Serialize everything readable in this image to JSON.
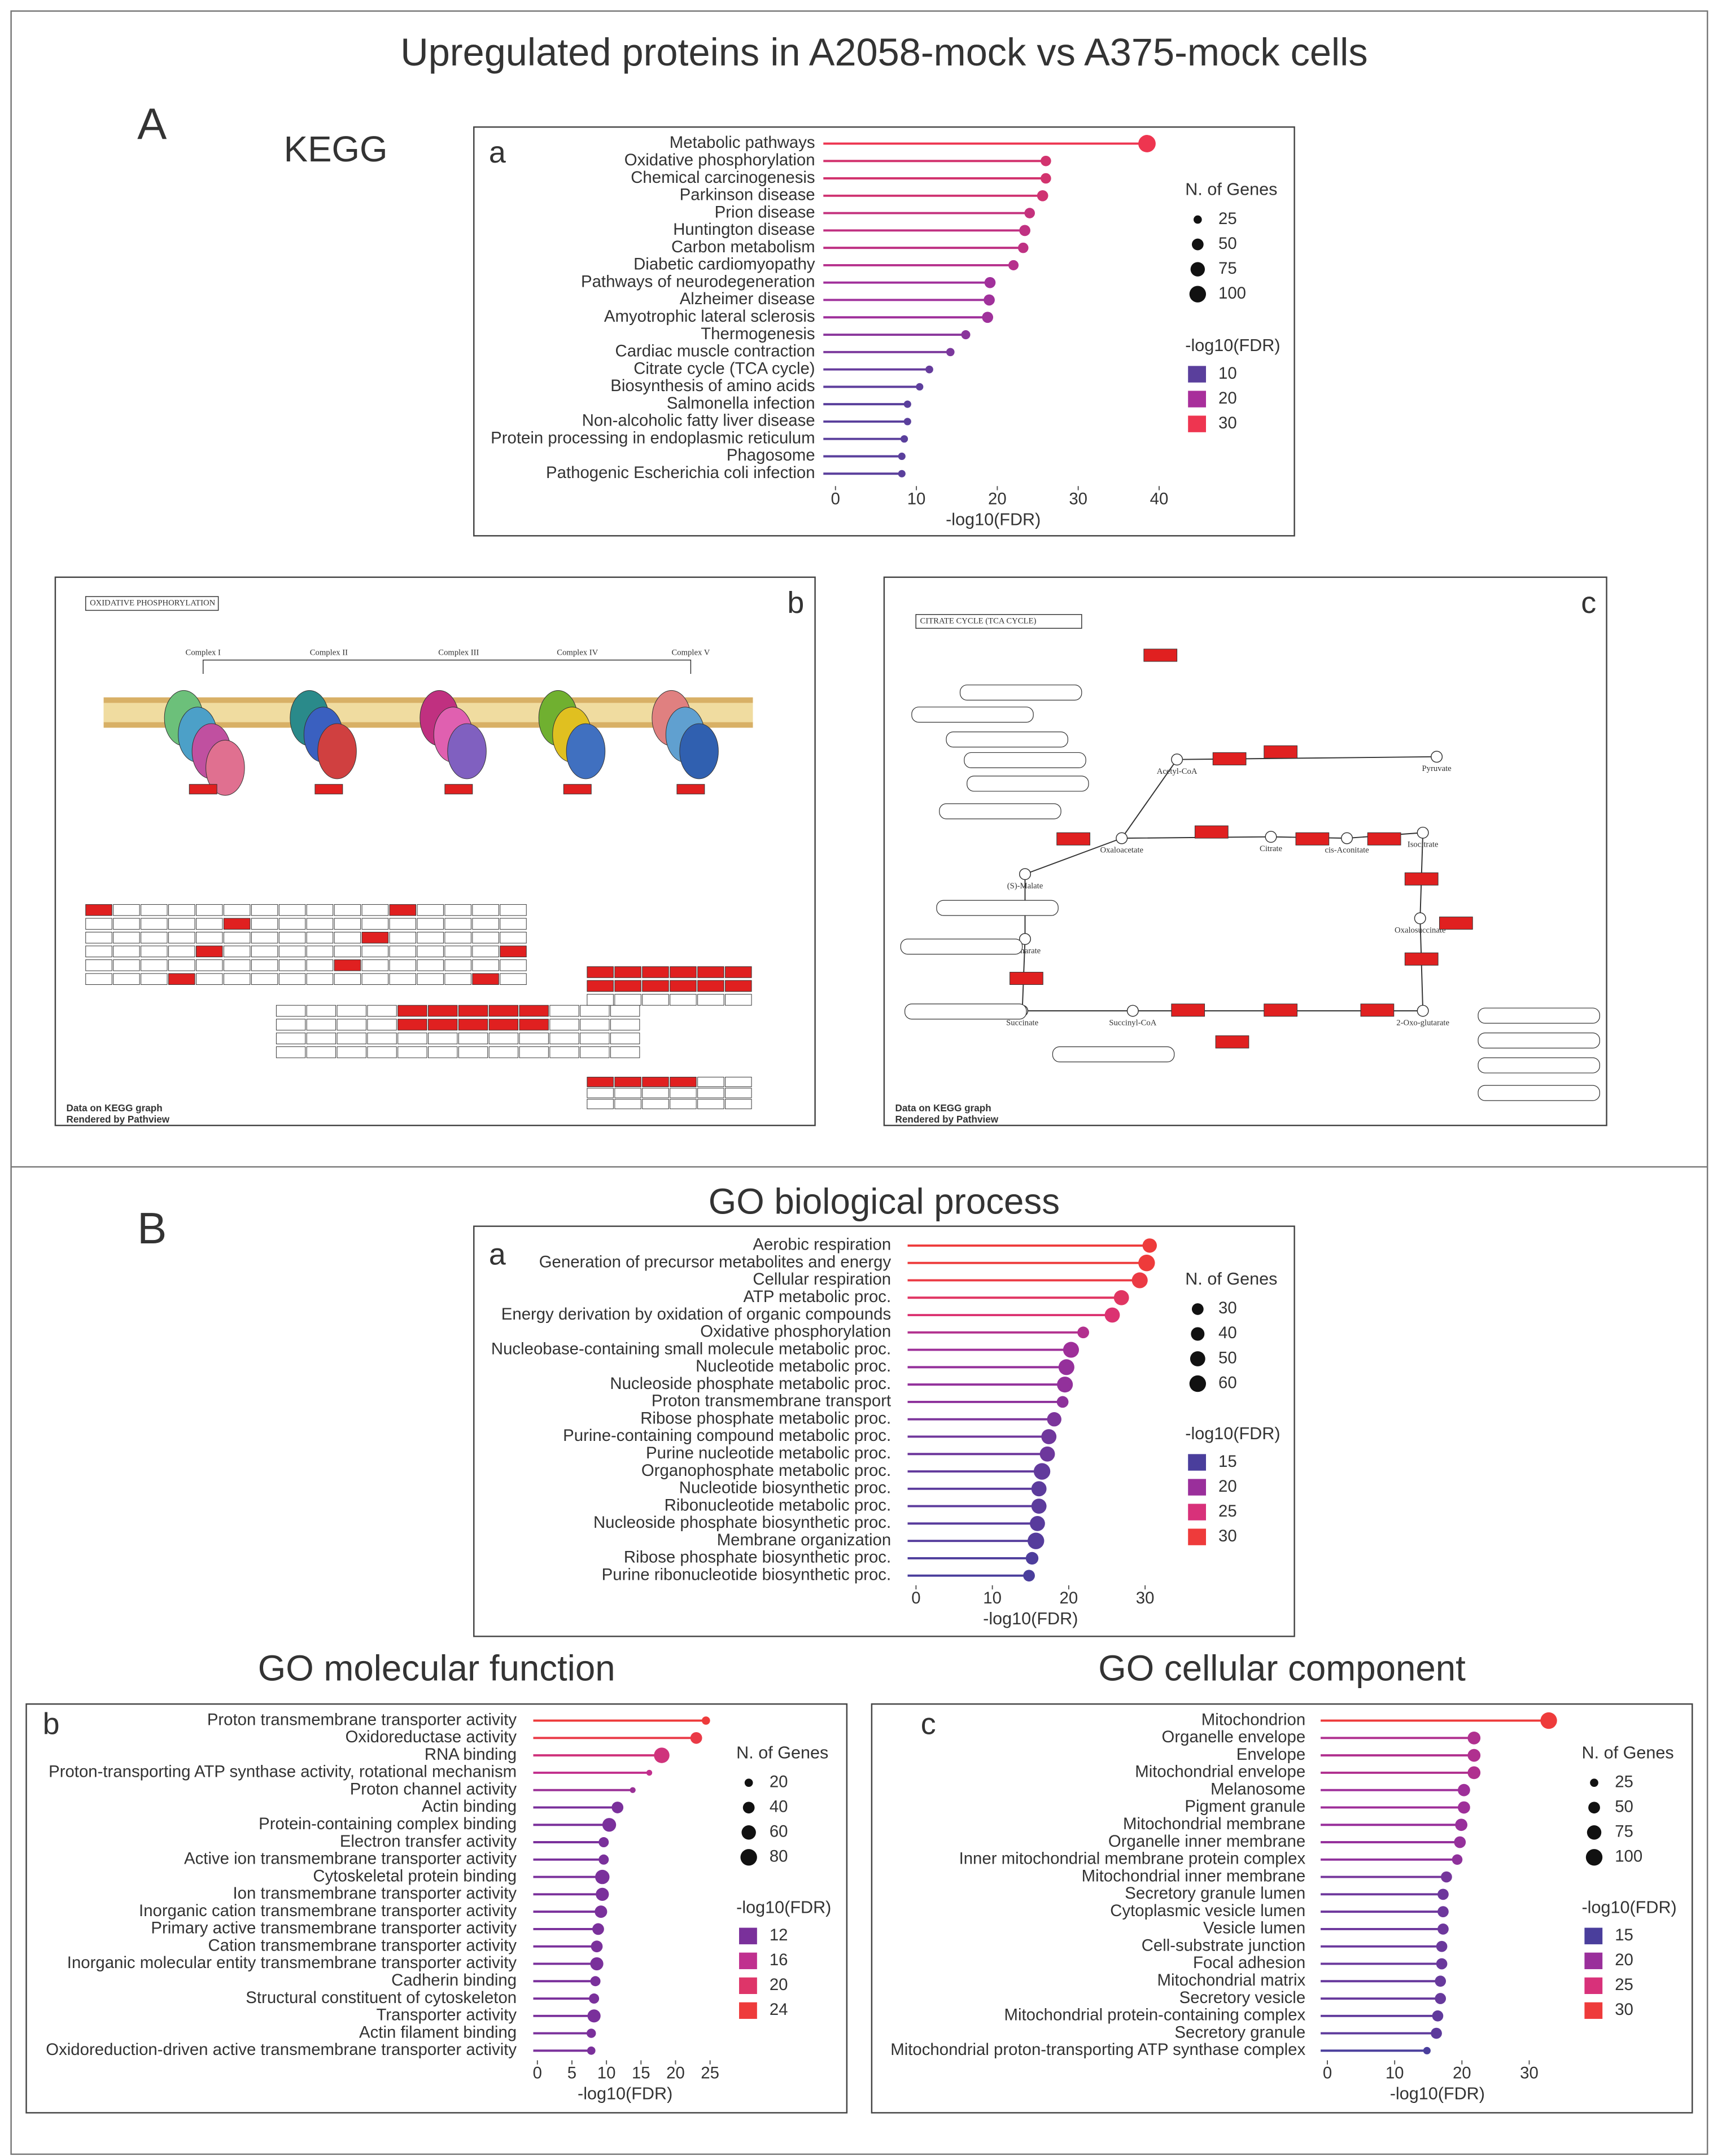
{
  "figure": {
    "title": "Upregulated proteins in A2058-mock vs A375-mock cells",
    "sections": [
      "A",
      "B"
    ]
  },
  "kegg_maps": [
    {
      "panel": "b",
      "title": "OXIDATIVE PHOSPHORYLATION",
      "complexes": [
        "Complex I",
        "Complex II",
        "Complex III",
        "Complex IV",
        "Complex V"
      ],
      "footer": [
        "Data on KEGG graph",
        "Rendered by Pathview"
      ]
    },
    {
      "panel": "c",
      "title": "CITRATE CYCLE (TCA CYCLE)",
      "compounds": [
        "Acetyl-CoA",
        "Pyruvate",
        "Oxaloacetate",
        "Citrate",
        "cis-Aconitate",
        "Isocitrate",
        "Oxalosuccinate",
        "2-Oxo-glutarate",
        "Succinyl-CoA",
        "Succinate",
        "Fumarate",
        "(S)-Malate"
      ],
      "footer": [
        "Data on KEGG graph",
        "Rendered by Pathview"
      ]
    }
  ],
  "chart_data": [
    {
      "type": "lollipop",
      "title": "KEGG",
      "panel": "a",
      "xlabel": "-log10(FDR)",
      "categories": [
        "Metabolic pathways",
        "Oxidative phosphorylation",
        "Chemical carcinogenesis",
        "Parkinson disease",
        "Prion disease",
        "Huntington disease",
        "Carbon metabolism",
        "Diabetic cardiomyopathy",
        "Pathways of neurodegeneration",
        "Alzheimer disease",
        "Amyotrophic lateral sclerosis",
        "Thermogenesis",
        "Cardiac muscle contraction",
        "Citrate cycle (TCA cycle)",
        "Biosynthesis of amino acids",
        "Salmonella infection",
        "Non-alcoholic fatty liver disease",
        "Protein processing in endoplasmic reticulum",
        "Phagosome",
        "Pathogenic Escherichia coli infection"
      ],
      "values": [
        38.5,
        26,
        26,
        25.6,
        24,
        23.4,
        23.2,
        22,
        19.1,
        19,
        18.8,
        16.1,
        14.2,
        11.6,
        10.4,
        8.9,
        8.9,
        8.5,
        8.2,
        8.2
      ],
      "sizes": [
        110,
        40,
        40,
        45,
        40,
        45,
        40,
        38,
        45,
        45,
        45,
        30,
        25,
        22,
        20,
        20,
        20,
        20,
        20,
        20
      ],
      "xlim": [
        -1.5,
        40.5
      ],
      "xticks": [
        0,
        10,
        20,
        30,
        40
      ],
      "size_legend": {
        "title": "N. of Genes",
        "values": [
          25,
          50,
          75,
          100
        ]
      },
      "color_legend": {
        "title": "-log10(FDR)",
        "values": [
          10,
          20,
          30
        ],
        "colors": [
          "#5a3f9c",
          "#a82f9b",
          "#ee3550"
        ]
      }
    },
    {
      "type": "lollipop",
      "title": "GO biological process",
      "panel": "a",
      "xlabel": "-log10(FDR)",
      "categories": [
        "Aerobic respiration",
        "Generation of precursor metabolites and energy",
        "Cellular respiration",
        "ATP metabolic proc.",
        "Energy derivation by oxidation of organic compounds",
        "Oxidative phosphorylation",
        "Nucleobase-containing small molecule metabolic proc.",
        "Nucleotide metabolic proc.",
        "Nucleoside phosphate metabolic proc.",
        "Proton transmembrane transport",
        "Ribose phosphate metabolic proc.",
        "Purine-containing compound metabolic proc.",
        "Purine nucleotide metabolic proc.",
        "Organophosphate metabolic proc.",
        "Nucleotide biosynthetic proc.",
        "Ribonucleotide metabolic proc.",
        "Nucleoside phosphate biosynthetic proc.",
        "Membrane organization",
        "Ribose phosphate biosynthetic proc.",
        "Purine ribonucleotide biosynthetic proc."
      ],
      "values": [
        30.6,
        30.2,
        29.3,
        26.9,
        25.7,
        21.9,
        20.3,
        19.7,
        19.5,
        19.2,
        18.1,
        17.4,
        17.2,
        16.5,
        16.1,
        16.1,
        15.9,
        15.7,
        15.2,
        14.8
      ],
      "sizes": [
        45,
        60,
        55,
        50,
        50,
        30,
        55,
        55,
        55,
        30,
        45,
        50,
        50,
        60,
        50,
        50,
        50,
        60,
        35,
        30
      ],
      "xlim": [
        -1.1,
        31.1
      ],
      "xticks": [
        0,
        10,
        20,
        30
      ],
      "size_legend": {
        "title": "N. of Genes",
        "values": [
          30,
          40,
          50,
          60
        ]
      },
      "color_legend": {
        "title": "-log10(FDR)",
        "values": [
          15,
          20,
          25,
          30
        ],
        "colors": [
          "#4a3e9c",
          "#9a2f9b",
          "#d8317a",
          "#ee3b3b"
        ]
      }
    },
    {
      "type": "lollipop",
      "title": "GO molecular function",
      "panel": "b",
      "xlabel": "-log10(FDR)",
      "categories": [
        "Proton transmembrane transporter activity",
        "Oxidoreductase activity",
        "RNA binding",
        "Proton-transporting ATP synthase activity, rotational mechanism",
        "Proton channel activity",
        "Actin binding",
        "Protein-containing complex binding",
        "Electron transfer activity",
        "Active ion transmembrane transporter activity",
        "Cytoskeletal protein binding",
        "Ion transmembrane transporter activity",
        "Inorganic cation transmembrane transporter activity",
        "Primary active transmembrane transporter activity",
        "Cation transmembrane transporter activity",
        "Inorganic molecular entity transmembrane transporter activity",
        "Cadherin binding",
        "Structural constituent of cytoskeleton",
        "Transporter activity",
        "Actin filament binding",
        "Oxidoreduction-driven active transmembrane transporter activity"
      ],
      "values": [
        24.4,
        23,
        18,
        16.2,
        13.8,
        11.6,
        10.4,
        9.6,
        9.6,
        9.4,
        9.4,
        9.2,
        8.8,
        8.6,
        8.6,
        8.4,
        8.2,
        8.2,
        7.8,
        7.8
      ],
      "sizes": [
        20,
        40,
        70,
        10,
        10,
        40,
        55,
        30,
        30,
        60,
        50,
        45,
        40,
        40,
        50,
        30,
        30,
        50,
        25,
        20
      ],
      "xlim": [
        -0.6,
        26
      ],
      "xticks": [
        0,
        5,
        10,
        15,
        20,
        25
      ],
      "size_legend": {
        "title": "N. of Genes",
        "values": [
          20,
          40,
          60,
          80
        ]
      },
      "color_legend": {
        "title": "-log10(FDR)",
        "values": [
          12,
          16,
          20,
          24
        ],
        "colors": [
          "#7a309b",
          "#c0308f",
          "#de3569",
          "#ee3b3b"
        ]
      }
    },
    {
      "type": "lollipop",
      "title": "GO cellular component",
      "panel": "c",
      "xlabel": "-log10(FDR)",
      "categories": [
        "Mitochondrion",
        "Organelle envelope",
        "Envelope",
        "Mitochondrial envelope",
        "Melanosome",
        "Pigment granule",
        "Mitochondrial membrane",
        "Organelle inner membrane",
        "Inner mitochondrial membrane protein complex",
        "Mitochondrial inner membrane",
        "Secretory granule lumen",
        "Cytoplasmic vesicle lumen",
        "Vesicle lumen",
        "Cell-substrate junction",
        "Focal adhesion",
        "Mitochondrial matrix",
        "Secretory vesicle",
        "Mitochondrial protein-containing complex",
        "Secretory granule",
        "Mitochondrial proton-transporting ATP synthase complex"
      ],
      "values": [
        32.9,
        21.8,
        21.8,
        21.8,
        20.3,
        20.3,
        19.9,
        19.7,
        19.3,
        17.7,
        17.2,
        17.2,
        17.2,
        17,
        17,
        16.8,
        16.8,
        16.4,
        16.2,
        14.8
      ],
      "sizes": [
        100,
        60,
        60,
        60,
        55,
        55,
        55,
        50,
        40,
        45,
        45,
        45,
        45,
        45,
        45,
        45,
        45,
        45,
        45,
        20
      ],
      "xlim": [
        -1,
        33.7
      ],
      "xticks": [
        0,
        10,
        20,
        30
      ],
      "size_legend": {
        "title": "N. of Genes",
        "values": [
          25,
          50,
          75,
          100
        ]
      },
      "color_legend": {
        "title": "-log10(FDR)",
        "values": [
          15,
          20,
          25,
          30
        ],
        "colors": [
          "#4a3e9c",
          "#9a2f9b",
          "#d8317a",
          "#ee3b3b"
        ]
      }
    }
  ]
}
